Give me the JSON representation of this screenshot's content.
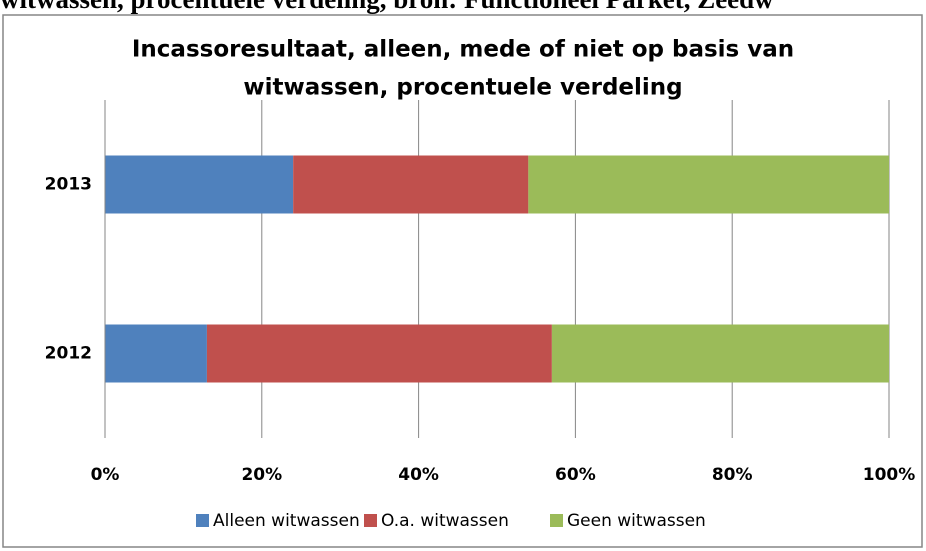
{
  "page_text": "witwassen, procentuele verdeling, bron: Functioneel Parket, Zeedw",
  "chart_data": {
    "type": "stacked_bar_horizontal",
    "title": [
      "Incassoresultaat, alleen, mede of niet op basis van",
      "witwassen, procentuele verdeling"
    ],
    "categories": [
      "2013",
      "2012"
    ],
    "series": [
      {
        "name": "Alleen witwassen",
        "color": "#4f81bd",
        "values": [
          24,
          13
        ]
      },
      {
        "name": "O.a. witwassen",
        "color": "#c0504d",
        "values": [
          30,
          44
        ]
      },
      {
        "name": "Geen witwassen",
        "color": "#9bbb59",
        "values": [
          46,
          43
        ]
      }
    ],
    "xlim": [
      0,
      100
    ],
    "xticks": [
      {
        "value": 0,
        "label": "0%"
      },
      {
        "value": 20,
        "label": "20%"
      },
      {
        "value": 40,
        "label": "40%"
      },
      {
        "value": 60,
        "label": "60%"
      },
      {
        "value": 80,
        "label": "80%"
      },
      {
        "value": 100,
        "label": "100%"
      }
    ],
    "grid": true,
    "legend": "bottom"
  }
}
